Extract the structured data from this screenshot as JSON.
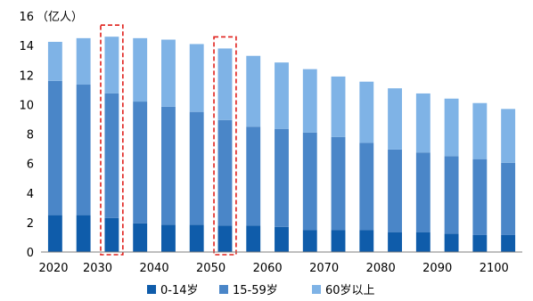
{
  "chart_data": {
    "type": "bar",
    "stacked": true,
    "unit_label": "（亿人）",
    "x": [
      2020,
      2025,
      2030,
      2035,
      2040,
      2045,
      2050,
      2055,
      2060,
      2065,
      2070,
      2075,
      2080,
      2085,
      2090,
      2095,
      2100
    ],
    "x_tick_labels": [
      "2020",
      "2030",
      "2040",
      "2050",
      "2060",
      "2070",
      "2080",
      "2090",
      "2100"
    ],
    "ylim": [
      0,
      16
    ],
    "y_ticks": [
      0,
      2,
      4,
      6,
      8,
      10,
      12,
      14,
      16
    ],
    "series": [
      {
        "name": "0-14岁",
        "color": "#0F5CAA",
        "values": [
          2.5,
          2.5,
          2.3,
          1.95,
          1.85,
          1.85,
          1.8,
          1.8,
          1.7,
          1.5,
          1.5,
          1.5,
          1.35,
          1.35,
          1.25,
          1.15,
          1.15
        ]
      },
      {
        "name": "15-59岁",
        "color": "#4A86C8",
        "values": [
          9.1,
          8.85,
          8.45,
          8.25,
          8.0,
          7.65,
          7.15,
          6.7,
          6.65,
          6.6,
          6.3,
          5.9,
          5.6,
          5.4,
          5.25,
          5.15,
          4.9
        ]
      },
      {
        "name": "60岁以上",
        "color": "#7FB3E6",
        "values": [
          2.65,
          3.15,
          3.85,
          4.3,
          4.55,
          4.6,
          4.85,
          4.8,
          4.5,
          4.3,
          4.1,
          4.15,
          4.15,
          4.0,
          3.9,
          3.8,
          3.65
        ]
      }
    ],
    "highlighted_x": [
      2030,
      2050
    ],
    "highlight_color": "#E0201B",
    "axis_color": "#7F7F7F",
    "legend_position": "bottom"
  }
}
